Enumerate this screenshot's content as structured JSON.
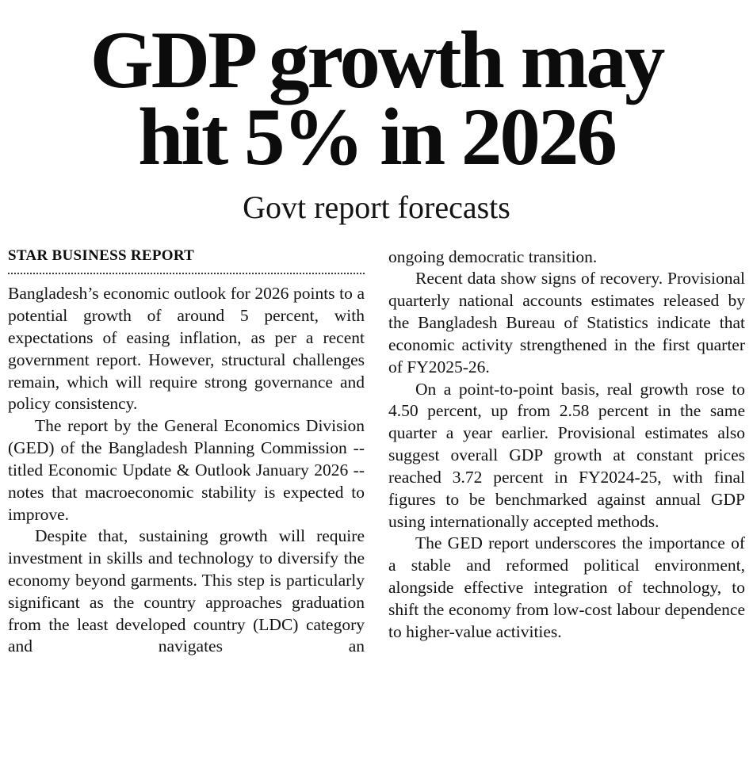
{
  "article": {
    "headline_line1": "GDP growth may",
    "headline_line2": "hit 5% in 2026",
    "subheadline": "Govt report forecasts",
    "byline": "STAR BUSINESS REPORT",
    "columns": {
      "left": {
        "p1": "Bangladesh’s economic outlook for 2026 points to a potential growth of around 5 percent, with expectations of easing inflation, as per a recent government report. However, structural challenges remain, which will require strong governance and policy consistency.",
        "p2": "The report by the General Economics Division (GED) of the Bangladesh Planning Commission -- titled Economic Update & Outlook January 2026 -- notes that macroeconomic stability is expected to improve.",
        "p3": "Despite that, sustaining growth will require investment in skills and technology to diversify the economy beyond garments. This step is particularly significant as the country approaches graduation from the least developed country (LDC) category and navigates an"
      },
      "right": {
        "p1": "ongoing democratic transition.",
        "p2": "Recent data show signs of recovery. Provisional quarterly national accounts estimates released by the Bangladesh Bureau of Statistics indicate that economic activity strengthened in the first quarter of FY2025-26.",
        "p3": "On a point-to-point basis, real growth rose to 4.50 percent, up from 2.58 percent in the same quarter a year earlier. Provisional estimates also suggest overall GDP growth at constant prices reached 3.72 percent in FY2024-25, with final figures to be benchmarked against annual GDP using internationally accepted methods.",
        "p4": "The GED report underscores the importance of a stable and reformed political environment, alongside effective integration of technology, to shift the economy from low-cost labour dependence to higher-value activities."
      }
    },
    "colors": {
      "ink": "#0c0c0c",
      "background": "#ffffff"
    }
  }
}
